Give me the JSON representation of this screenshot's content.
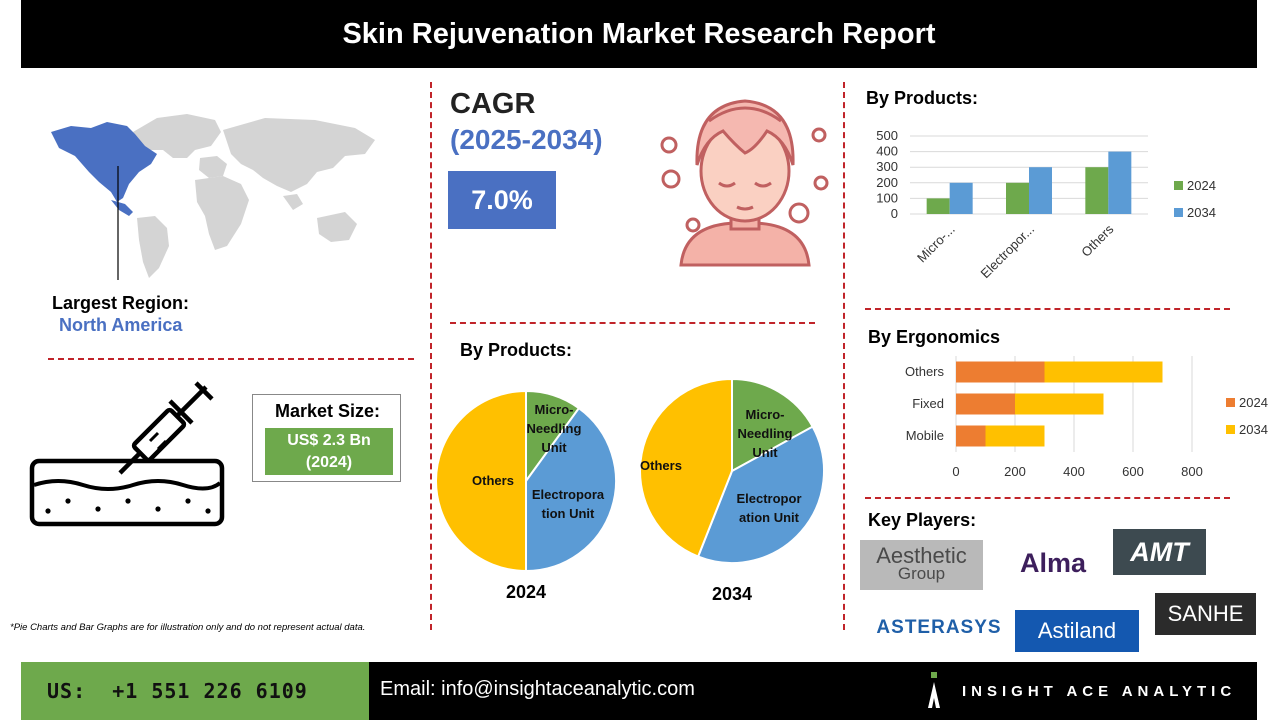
{
  "header": {
    "title": "Skin Rejuvenation Market Research Report"
  },
  "region": {
    "label": "Largest Region:",
    "value": "North America"
  },
  "cagr": {
    "title": "CAGR",
    "years": "(2025-2034)",
    "value": "7.0%"
  },
  "market_size": {
    "label": "Market Size:",
    "value_line1": "US$ 2.3 Bn",
    "value_line2": "(2024)"
  },
  "pie_section": {
    "title": "By Products:"
  },
  "bar_products_section": {
    "title": "By Products:"
  },
  "ergonomics_section": {
    "title": "By Ergonomics"
  },
  "key_players": {
    "title": "Key Players:",
    "logos": [
      "Aesthetic",
      "Group",
      "Alma",
      "AMT",
      "ASTERASYS",
      "Astiland",
      "SANHE"
    ]
  },
  "footnote": "*Pie Charts and Bar Graphs are for illustration only and do not represent actual data.",
  "footer": {
    "phone": "US:  +1 551 226 6109",
    "email": "Email: info@insightaceanalytic.com",
    "brand": "INSIGHT ACE ANALYTIC"
  },
  "colors": {
    "green": "#6ea94c",
    "blue": "#5b9bd5",
    "yellow": "#ffc000",
    "orange": "#ed7d31",
    "accent_blue": "#4a70c2",
    "divider_red": "#c0242a"
  },
  "icons": [
    "world-map-icon",
    "face-towel-icon",
    "syringe-skin-icon",
    "insight-ace-logo-icon"
  ],
  "chart_data": [
    {
      "type": "pie",
      "title": "",
      "caption": "2024",
      "labels": [
        "Micro-Needling Unit",
        "Electroporation Unit",
        "Others"
      ],
      "label_lines": [
        [
          "Micro-",
          "Needling",
          "Unit"
        ],
        [
          "Electropora",
          "tion Unit"
        ],
        [
          "Others"
        ]
      ],
      "values": [
        10,
        40,
        50
      ],
      "colors": [
        "#6ea94c",
        "#5b9bd5",
        "#ffc000"
      ]
    },
    {
      "type": "pie",
      "title": "",
      "caption": "2034",
      "labels": [
        "Micro-Needling Unit",
        "Electroporation Unit",
        "Others"
      ],
      "label_lines": [
        [
          "Micro-",
          "Needling",
          "Unit"
        ],
        [
          "Electropor",
          "ation Unit"
        ],
        [
          "Others"
        ]
      ],
      "values": [
        17,
        39,
        44
      ],
      "colors": [
        "#6ea94c",
        "#5b9bd5",
        "#ffc000"
      ]
    },
    {
      "type": "bar",
      "title": "",
      "categories": [
        "Micro-...",
        "Electropor...",
        "Others"
      ],
      "series": [
        {
          "name": "2024",
          "values": [
            100,
            200,
            300
          ],
          "color": "#6ea94c"
        },
        {
          "name": "2034",
          "values": [
            200,
            300,
            400
          ],
          "color": "#5b9bd5"
        }
      ],
      "yticks": [
        "0",
        "100",
        "200",
        "300",
        "400",
        "500"
      ],
      "ylim": [
        0,
        500
      ],
      "grid": true,
      "legend": "right"
    },
    {
      "type": "bar",
      "orientation": "horizontal",
      "stacked": true,
      "title": "",
      "categories": [
        "Others",
        "Fixed",
        "Mobile"
      ],
      "series": [
        {
          "name": "2024",
          "values": [
            300,
            200,
            100
          ],
          "color": "#ed7d31"
        },
        {
          "name": "2034",
          "values": [
            400,
            300,
            200
          ],
          "color": "#ffc000"
        }
      ],
      "xticks": [
        "0",
        "200",
        "400",
        "600",
        "800"
      ],
      "xlim": [
        0,
        800
      ],
      "grid": true,
      "legend": "right"
    }
  ]
}
